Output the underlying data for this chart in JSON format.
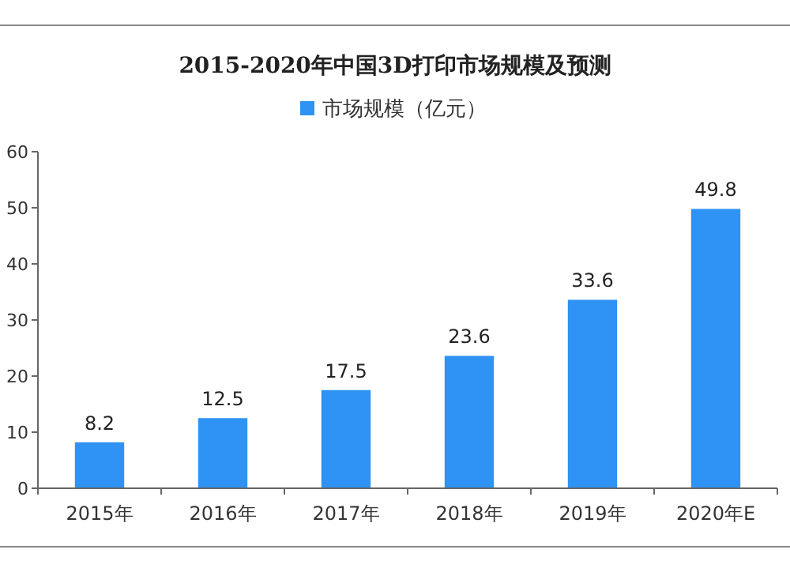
{
  "chart_data": {
    "type": "bar",
    "title": "2015-2020年中国3D打印市场规模及预测",
    "categories": [
      "2015年",
      "2016年",
      "2017年",
      "2018年",
      "2019年",
      "2020年E"
    ],
    "series": [
      {
        "name": "市场规模（亿元）",
        "color": "#2e93f5",
        "values": [
          8.2,
          12.5,
          17.5,
          23.6,
          33.6,
          49.8
        ]
      }
    ],
    "ylim": [
      0,
      60
    ],
    "yticks": [
      0,
      10,
      20,
      30,
      40,
      50,
      60
    ],
    "data_labels": true,
    "legend": "top",
    "grid": false
  }
}
